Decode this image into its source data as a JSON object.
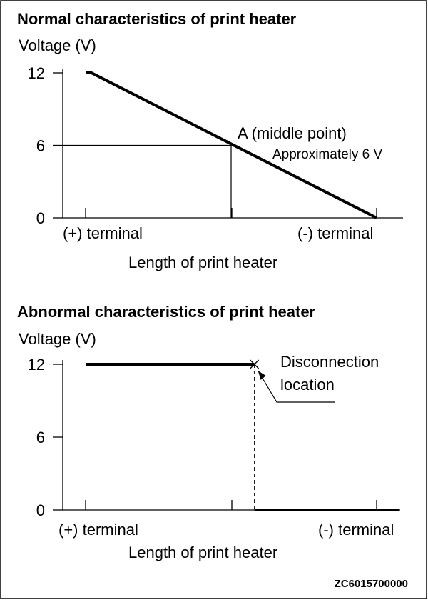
{
  "figure_code": "ZC6015700000",
  "chart_data": [
    {
      "type": "line",
      "title": "Normal characteristics of print heater",
      "ylabel": "Voltage (V)",
      "xlabel": "Length of print heater",
      "x_tick_labels": {
        "start": "(+) terminal",
        "end": "(-) terminal"
      },
      "y_ticks": [
        0,
        6,
        12
      ],
      "ylim": [
        0,
        12
      ],
      "xlim": [
        0,
        1
      ],
      "series": [
        {
          "x": [
            0,
            0.02,
            1.0
          ],
          "y": [
            12,
            12,
            0
          ]
        }
      ],
      "annotations": {
        "point_label": "A (middle point)",
        "point_value": "Approximately 6 V",
        "point": {
          "x": 0.5,
          "y": 6
        }
      }
    },
    {
      "type": "line",
      "title": "Abnormal characteristics of print heater",
      "ylabel": "Voltage (V)",
      "xlabel": "Length of print heater",
      "x_tick_labels": {
        "start": "(+) terminal",
        "end": "(-) terminal"
      },
      "y_ticks": [
        0,
        6,
        12
      ],
      "ylim": [
        0,
        12
      ],
      "xlim": [
        0,
        1
      ],
      "series": [
        {
          "x": [
            0,
            0.58
          ],
          "y": [
            12,
            12
          ]
        },
        {
          "x": [
            0.58,
            1.08
          ],
          "y": [
            0,
            0
          ]
        }
      ],
      "annotations": {
        "disconnection_label": [
          "Disconnection",
          "location"
        ],
        "disconnection_point": {
          "x": 0.58,
          "y": 12
        }
      }
    }
  ]
}
